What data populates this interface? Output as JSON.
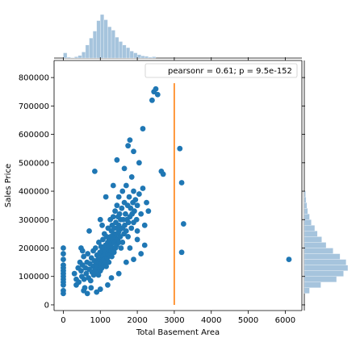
{
  "chart_data": {
    "type": "scatter",
    "title": "",
    "xlabel": "Total Basement Area",
    "ylabel": "Sales Price",
    "xlim": [
      -250,
      6450
    ],
    "ylim": [
      -20000,
      860000
    ],
    "xticks": [
      0,
      1000,
      2000,
      3000,
      4000,
      5000,
      6000
    ],
    "yticks": [
      0,
      100000,
      200000,
      300000,
      400000,
      500000,
      600000,
      700000,
      800000
    ],
    "legend": {
      "text": "pearsonr = 0.61; p = 9.5e-152",
      "placement": "top-right"
    },
    "grid": false,
    "colors": {
      "points": "#1f77b4",
      "vline": "#ff7f0e",
      "hist": "#a6c4dd"
    },
    "vertical_line": {
      "x": 3000,
      "y_range": [
        0,
        780000
      ]
    },
    "scatter_points": [
      [
        0,
        200000
      ],
      [
        0,
        180000
      ],
      [
        0,
        160000
      ],
      [
        0,
        140000
      ],
      [
        0,
        130000
      ],
      [
        0,
        120000
      ],
      [
        0,
        110000
      ],
      [
        0,
        100000
      ],
      [
        0,
        90000
      ],
      [
        0,
        80000
      ],
      [
        0,
        70000
      ],
      [
        0,
        50000
      ],
      [
        0,
        40000
      ],
      [
        300,
        110000
      ],
      [
        350,
        90000
      ],
      [
        400,
        130000
      ],
      [
        420,
        80000
      ],
      [
        450,
        150000
      ],
      [
        480,
        120000
      ],
      [
        500,
        100000
      ],
      [
        520,
        140000
      ],
      [
        550,
        170000
      ],
      [
        560,
        90000
      ],
      [
        580,
        60000
      ],
      [
        600,
        130000
      ],
      [
        620,
        110000
      ],
      [
        640,
        150000
      ],
      [
        660,
        180000
      ],
      [
        680,
        95000
      ],
      [
        700,
        125000
      ],
      [
        720,
        145000
      ],
      [
        740,
        85000
      ],
      [
        760,
        165000
      ],
      [
        780,
        115000
      ],
      [
        800,
        135000
      ],
      [
        810,
        190000
      ],
      [
        820,
        105000
      ],
      [
        840,
        155000
      ],
      [
        860,
        125000
      ],
      [
        870,
        200000
      ],
      [
        880,
        145000
      ],
      [
        900,
        115000
      ],
      [
        910,
        175000
      ],
      [
        920,
        135000
      ],
      [
        940,
        160000
      ],
      [
        950,
        105000
      ],
      [
        960,
        220000
      ],
      [
        970,
        150000
      ],
      [
        980,
        130000
      ],
      [
        990,
        185000
      ],
      [
        1000,
        120000
      ],
      [
        1000,
        160000
      ],
      [
        1010,
        140000
      ],
      [
        1020,
        205000
      ],
      [
        1030,
        175000
      ],
      [
        1040,
        130000
      ],
      [
        1050,
        190000
      ],
      [
        1060,
        155000
      ],
      [
        1070,
        230000
      ],
      [
        1080,
        170000
      ],
      [
        1090,
        140000
      ],
      [
        1100,
        200000
      ],
      [
        1100,
        160000
      ],
      [
        1110,
        250000
      ],
      [
        1120,
        180000
      ],
      [
        1130,
        150000
      ],
      [
        1140,
        210000
      ],
      [
        1150,
        190000
      ],
      [
        1160,
        135000
      ],
      [
        1170,
        240000
      ],
      [
        1180,
        200000
      ],
      [
        1190,
        165000
      ],
      [
        1200,
        220000
      ],
      [
        1200,
        180000
      ],
      [
        1210,
        270000
      ],
      [
        1220,
        195000
      ],
      [
        1230,
        150000
      ],
      [
        1240,
        230000
      ],
      [
        1250,
        210000
      ],
      [
        1260,
        175000
      ],
      [
        1270,
        300000
      ],
      [
        1280,
        240000
      ],
      [
        1290,
        190000
      ],
      [
        1300,
        260000
      ],
      [
        1300,
        215000
      ],
      [
        1310,
        170000
      ],
      [
        1320,
        280000
      ],
      [
        1330,
        230000
      ],
      [
        1340,
        200000
      ],
      [
        1350,
        310000
      ],
      [
        1360,
        250000
      ],
      [
        1370,
        185000
      ],
      [
        1380,
        270000
      ],
      [
        1390,
        220000
      ],
      [
        1400,
        330000
      ],
      [
        1400,
        240000
      ],
      [
        1410,
        200000
      ],
      [
        1420,
        290000
      ],
      [
        1430,
        250000
      ],
      [
        1440,
        210000
      ],
      [
        1450,
        350000
      ],
      [
        1460,
        270000
      ],
      [
        1470,
        230000
      ],
      [
        1480,
        310000
      ],
      [
        1490,
        255000
      ],
      [
        1500,
        380000
      ],
      [
        1500,
        280000
      ],
      [
        1510,
        220000
      ],
      [
        1520,
        320000
      ],
      [
        1530,
        265000
      ],
      [
        1540,
        240000
      ],
      [
        1550,
        300000
      ],
      [
        1560,
        200000
      ],
      [
        1580,
        340000
      ],
      [
        1600,
        270000
      ],
      [
        1600,
        400000
      ],
      [
        1620,
        300000
      ],
      [
        1640,
        250000
      ],
      [
        1650,
        360000
      ],
      [
        1660,
        280000
      ],
      [
        1680,
        320000
      ],
      [
        1700,
        260000
      ],
      [
        1700,
        420000
      ],
      [
        1720,
        300000
      ],
      [
        1740,
        350000
      ],
      [
        1750,
        240000
      ],
      [
        1760,
        290000
      ],
      [
        1780,
        380000
      ],
      [
        1800,
        310000
      ],
      [
        1800,
        200000
      ],
      [
        1820,
        340000
      ],
      [
        1840,
        270000
      ],
      [
        1850,
        450000
      ],
      [
        1860,
        320000
      ],
      [
        1880,
        360000
      ],
      [
        1900,
        290000
      ],
      [
        1900,
        400000
      ],
      [
        1920,
        330000
      ],
      [
        1950,
        370000
      ],
      [
        1980,
        300000
      ],
      [
        2000,
        350000
      ],
      [
        2000,
        230000
      ],
      [
        2050,
        390000
      ],
      [
        2100,
        320000
      ],
      [
        2150,
        410000
      ],
      [
        2200,
        280000
      ],
      [
        2250,
        360000
      ],
      [
        2300,
        330000
      ],
      [
        480,
        200000
      ],
      [
        520,
        190000
      ],
      [
        700,
        260000
      ],
      [
        850,
        470000
      ],
      [
        1000,
        300000
      ],
      [
        1050,
        280000
      ],
      [
        1150,
        380000
      ],
      [
        1350,
        420000
      ],
      [
        1450,
        510000
      ],
      [
        1650,
        480000
      ],
      [
        1750,
        560000
      ],
      [
        1800,
        580000
      ],
      [
        1900,
        540000
      ],
      [
        2050,
        500000
      ],
      [
        2150,
        620000
      ],
      [
        2400,
        720000
      ],
      [
        2450,
        750000
      ],
      [
        2500,
        760000
      ],
      [
        2550,
        740000
      ],
      [
        2650,
        470000
      ],
      [
        2700,
        460000
      ],
      [
        3150,
        550000
      ],
      [
        3200,
        430000
      ],
      [
        3250,
        285000
      ],
      [
        3200,
        185000
      ],
      [
        6100,
        160000
      ],
      [
        350,
        70000
      ],
      [
        550,
        50000
      ],
      [
        650,
        40000
      ],
      [
        750,
        60000
      ],
      [
        900,
        45000
      ],
      [
        1000,
        55000
      ],
      [
        1200,
        70000
      ],
      [
        1300,
        95000
      ],
      [
        1500,
        110000
      ],
      [
        1700,
        150000
      ],
      [
        1900,
        160000
      ],
      [
        2100,
        180000
      ],
      [
        2200,
        210000
      ],
      [
        2000,
        260000
      ],
      [
        1600,
        220000
      ]
    ],
    "marginal_x": {
      "bin_edges": [
        0,
        100,
        200,
        300,
        400,
        500,
        600,
        700,
        800,
        900,
        1000,
        1100,
        1200,
        1300,
        1400,
        1500,
        1600,
        1700,
        1800,
        1900,
        2000,
        2100,
        2200,
        2300,
        2400,
        2500
      ],
      "heights": [
        0.12,
        0.02,
        0.01,
        0.03,
        0.06,
        0.14,
        0.3,
        0.46,
        0.62,
        0.86,
        1.0,
        0.88,
        0.72,
        0.64,
        0.48,
        0.38,
        0.3,
        0.24,
        0.16,
        0.12,
        0.08,
        0.05,
        0.04,
        0.02,
        0.03
      ]
    },
    "marginal_y": {
      "bin_edges": [
        40000,
        60000,
        80000,
        100000,
        120000,
        140000,
        160000,
        180000,
        200000,
        220000,
        240000,
        260000,
        280000,
        300000,
        320000,
        340000,
        360000,
        380000,
        400000
      ],
      "heights": [
        0.12,
        0.38,
        0.74,
        0.9,
        1.0,
        0.96,
        0.82,
        0.66,
        0.5,
        0.4,
        0.3,
        0.24,
        0.16,
        0.12,
        0.08,
        0.06,
        0.04,
        0.03
      ]
    }
  }
}
